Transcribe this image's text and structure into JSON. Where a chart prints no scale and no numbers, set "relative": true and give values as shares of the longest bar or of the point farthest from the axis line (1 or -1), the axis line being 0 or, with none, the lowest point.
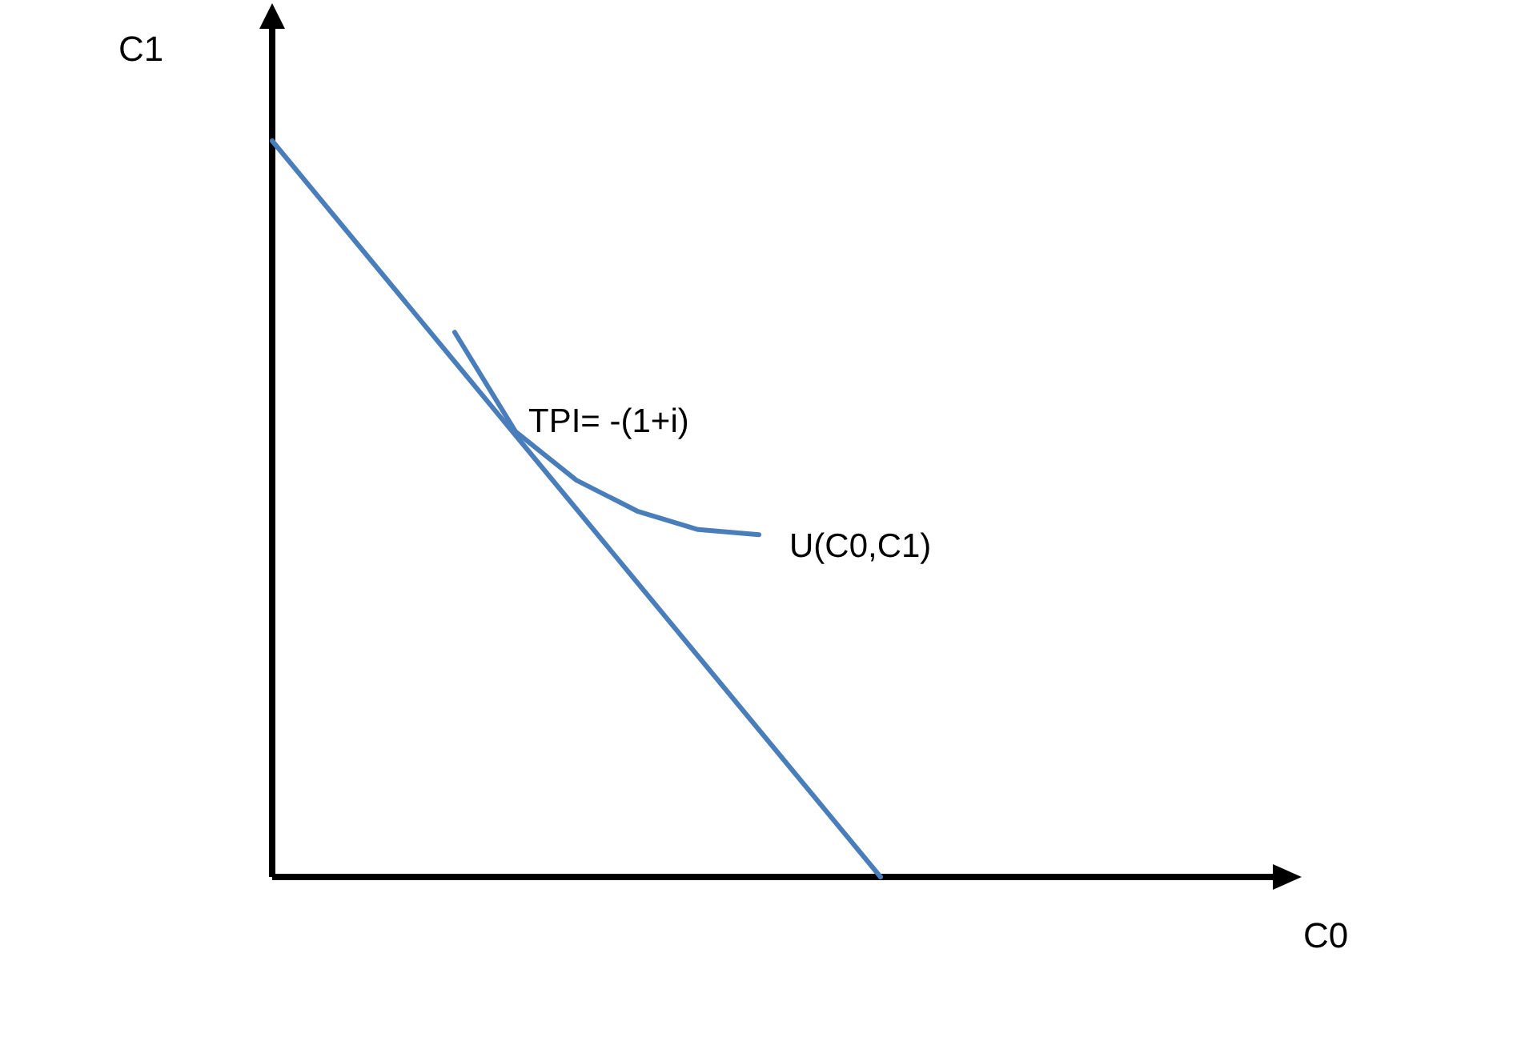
{
  "chart_data": {
    "type": "line",
    "relative": true,
    "xlabel": "C0",
    "ylabel": "C1",
    "categories": [
      null,
      null,
      null,
      null,
      null,
      null,
      null,
      null,
      null,
      null,
      null,
      null,
      null,
      null,
      null,
      null,
      null
    ],
    "series": [
      {
        "color": "#4a7ebb",
        "values": [
          1,
          0.9,
          0.8,
          0.7,
          0.6,
          0.5,
          0.4,
          0.3,
          0.2,
          0.1,
          0,
          null,
          null,
          null,
          null,
          null,
          null
        ]
      },
      {
        "color": "#4a7ebb",
        "values": [
          null,
          null,
          null,
          0.74,
          0.605,
          0.539,
          0.497,
          0.472,
          0.465,
          null,
          null,
          null,
          null,
          null,
          null,
          null,
          null
        ]
      }
    ],
    "annotations": [
      "TPI= -(1+i)",
      "U(C0,C1)"
    ]
  }
}
